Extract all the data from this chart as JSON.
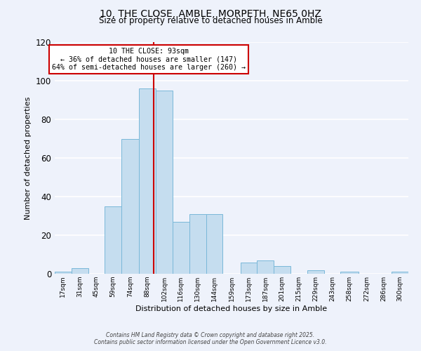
{
  "title": "10, THE CLOSE, AMBLE, MORPETH, NE65 0HZ",
  "subtitle": "Size of property relative to detached houses in Amble",
  "xlabel": "Distribution of detached houses by size in Amble",
  "ylabel": "Number of detached properties",
  "bin_labels": [
    "17sqm",
    "31sqm",
    "45sqm",
    "59sqm",
    "74sqm",
    "88sqm",
    "102sqm",
    "116sqm",
    "130sqm",
    "144sqm",
    "159sqm",
    "173sqm",
    "187sqm",
    "201sqm",
    "215sqm",
    "229sqm",
    "243sqm",
    "258sqm",
    "272sqm",
    "286sqm",
    "300sqm"
  ],
  "bar_heights": [
    1,
    3,
    0,
    35,
    70,
    96,
    95,
    27,
    31,
    31,
    0,
    6,
    7,
    4,
    0,
    2,
    0,
    1,
    0,
    0,
    1
  ],
  "bar_color": "#c5ddef",
  "bar_edge_color": "#7ab8d9",
  "vline_color": "#cc0000",
  "annotation_line1": "10 THE CLOSE: 93sqm",
  "annotation_line2": "← 36% of detached houses are smaller (147)",
  "annotation_line3": "64% of semi-detached houses are larger (260) →",
  "annotation_box_color": "#ffffff",
  "annotation_box_edge_color": "#cc0000",
  "ylim": [
    0,
    120
  ],
  "background_color": "#eef2fb",
  "grid_color": "#ffffff",
  "footer1": "Contains HM Land Registry data © Crown copyright and database right 2025.",
  "footer2": "Contains public sector information licensed under the Open Government Licence v3.0.",
  "bin_edges": [
    10,
    24,
    38,
    52,
    66,
    81,
    95,
    109,
    123,
    137,
    151,
    166,
    180,
    194,
    208,
    222,
    236,
    250,
    265,
    279,
    293,
    307
  ],
  "vline_x_data": 93
}
